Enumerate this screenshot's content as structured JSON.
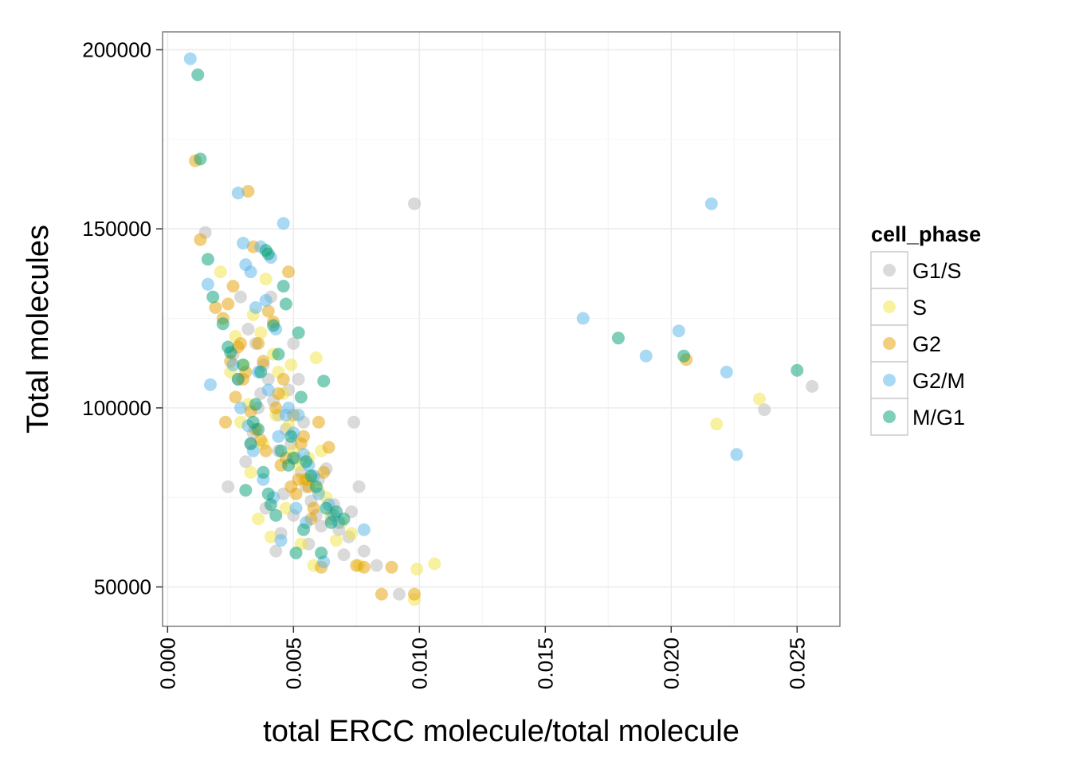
{
  "chart_data": {
    "type": "scatter",
    "xlabel": "total ERCC molecule/total molecule",
    "ylabel": "Total molecules",
    "xlim": [
      -0.0002,
      0.0267
    ],
    "ylim": [
      39000,
      205000
    ],
    "x_ticks": [
      0.0,
      0.005,
      0.01,
      0.015,
      0.02,
      0.025
    ],
    "x_tick_labels": [
      "0.000",
      "0.005",
      "0.010",
      "0.015",
      "0.020",
      "0.025"
    ],
    "y_ticks": [
      50000,
      100000,
      150000,
      200000
    ],
    "y_tick_labels": [
      "50000",
      "100000",
      "150000",
      "200000"
    ],
    "grid": true,
    "legend_position": "right",
    "legend_title": "cell_phase",
    "series": [
      {
        "name": "G1/S",
        "color": "#b5b5b5",
        "points": [
          [
            0.0015,
            149000
          ],
          [
            0.0029,
            131000
          ],
          [
            0.0032,
            122000
          ],
          [
            0.0035,
            118000
          ],
          [
            0.0038,
            112000
          ],
          [
            0.004,
            108000
          ],
          [
            0.0042,
            102000
          ],
          [
            0.0044,
            98000
          ],
          [
            0.0047,
            94000
          ],
          [
            0.0049,
            90000
          ],
          [
            0.0051,
            86000
          ],
          [
            0.0053,
            82000
          ],
          [
            0.0055,
            78000
          ],
          [
            0.0057,
            74000
          ],
          [
            0.0059,
            70000
          ],
          [
            0.0061,
            67000
          ],
          [
            0.0063,
            83000
          ],
          [
            0.0065,
            69000
          ],
          [
            0.0068,
            66000
          ],
          [
            0.007,
            59000
          ],
          [
            0.0073,
            71000
          ],
          [
            0.0076,
            78000
          ],
          [
            0.0078,
            60000
          ],
          [
            0.0083,
            56000
          ],
          [
            0.0092,
            48000
          ],
          [
            0.0098,
            157000
          ],
          [
            0.0074,
            96000
          ],
          [
            0.0024,
            78000
          ],
          [
            0.0033,
            90000
          ],
          [
            0.0036,
            100000
          ],
          [
            0.0041,
            131000
          ],
          [
            0.0045,
            65000
          ],
          [
            0.0048,
            105000
          ],
          [
            0.0052,
            108000
          ],
          [
            0.0026,
            115000
          ],
          [
            0.0031,
            85000
          ],
          [
            0.0039,
            72000
          ],
          [
            0.0043,
            60000
          ],
          [
            0.005,
            118000
          ],
          [
            0.0056,
            62000
          ],
          [
            0.0028,
            108000
          ],
          [
            0.0034,
            93000
          ],
          [
            0.0046,
            76000
          ],
          [
            0.0054,
            96000
          ],
          [
            0.006,
            80000
          ],
          [
            0.0066,
            73000
          ],
          [
            0.0072,
            64000
          ],
          [
            0.0044,
            88000
          ],
          [
            0.0037,
            104000
          ],
          [
            0.005,
            70000
          ],
          [
            0.0237,
            99500
          ],
          [
            0.0256,
            106000
          ]
        ]
      },
      {
        "name": "S",
        "color": "#f0e442",
        "points": [
          [
            0.0021,
            138000
          ],
          [
            0.0027,
            120000
          ],
          [
            0.003,
            112000
          ],
          [
            0.0034,
            126000
          ],
          [
            0.0037,
            121000
          ],
          [
            0.0039,
            136000
          ],
          [
            0.0042,
            115000
          ],
          [
            0.0044,
            110000
          ],
          [
            0.0046,
            104000
          ],
          [
            0.0048,
            95000
          ],
          [
            0.005,
            88000
          ],
          [
            0.0052,
            84000
          ],
          [
            0.0054,
            80000
          ],
          [
            0.0056,
            86000
          ],
          [
            0.0058,
            56000
          ],
          [
            0.0059,
            114000
          ],
          [
            0.0061,
            88000
          ],
          [
            0.0063,
            75000
          ],
          [
            0.0065,
            70000
          ],
          [
            0.0067,
            63000
          ],
          [
            0.0069,
            68000
          ],
          [
            0.0073,
            65000
          ],
          [
            0.0076,
            56000
          ],
          [
            0.0098,
            46500
          ],
          [
            0.0099,
            55000
          ],
          [
            0.0106,
            56500
          ],
          [
            0.0036,
            69000
          ],
          [
            0.0041,
            64000
          ],
          [
            0.0047,
            72000
          ],
          [
            0.0032,
            101000
          ],
          [
            0.0029,
            96000
          ],
          [
            0.0038,
            90000
          ],
          [
            0.0043,
            98000
          ],
          [
            0.0053,
            62000
          ],
          [
            0.0057,
            80000
          ],
          [
            0.0025,
            110000
          ],
          [
            0.0033,
            82000
          ],
          [
            0.0049,
            112000
          ],
          [
            0.006,
            77000
          ],
          [
            0.0218,
            95500
          ],
          [
            0.0235,
            102500
          ]
        ]
      },
      {
        "name": "G2",
        "color": "#e69f00",
        "points": [
          [
            0.0011,
            169000
          ],
          [
            0.0013,
            147000
          ],
          [
            0.0019,
            128000
          ],
          [
            0.0022,
            125000
          ],
          [
            0.0024,
            129000
          ],
          [
            0.0026,
            134000
          ],
          [
            0.0028,
            117000
          ],
          [
            0.003,
            108000
          ],
          [
            0.0032,
            160500
          ],
          [
            0.0034,
            145000
          ],
          [
            0.0036,
            118000
          ],
          [
            0.0038,
            113000
          ],
          [
            0.004,
            127000
          ],
          [
            0.0042,
            124000
          ],
          [
            0.0044,
            104000
          ],
          [
            0.0046,
            108000
          ],
          [
            0.0048,
            138000
          ],
          [
            0.005,
            98000
          ],
          [
            0.0052,
            80000
          ],
          [
            0.0054,
            92000
          ],
          [
            0.0056,
            78000
          ],
          [
            0.0058,
            72000
          ],
          [
            0.006,
            96000
          ],
          [
            0.0062,
            82000
          ],
          [
            0.0064,
            89000
          ],
          [
            0.0075,
            56000
          ],
          [
            0.0078,
            55500
          ],
          [
            0.0085,
            48000
          ],
          [
            0.0089,
            55500
          ],
          [
            0.0098,
            48000
          ],
          [
            0.0023,
            96000
          ],
          [
            0.0027,
            103000
          ],
          [
            0.0031,
            110000
          ],
          [
            0.0035,
            94000
          ],
          [
            0.0039,
            88000
          ],
          [
            0.0043,
            100000
          ],
          [
            0.0047,
            86000
          ],
          [
            0.0051,
            76000
          ],
          [
            0.0055,
            80000
          ],
          [
            0.0025,
            113000
          ],
          [
            0.0033,
            99000
          ],
          [
            0.0037,
            91000
          ],
          [
            0.0045,
            84000
          ],
          [
            0.0049,
            78000
          ],
          [
            0.0053,
            90000
          ],
          [
            0.0057,
            69000
          ],
          [
            0.0061,
            55500
          ],
          [
            0.0029,
            118000
          ],
          [
            0.0206,
            113500
          ]
        ]
      },
      {
        "name": "G2/M",
        "color": "#56b4e9",
        "points": [
          [
            0.0009,
            197500
          ],
          [
            0.0016,
            134500
          ],
          [
            0.0017,
            106500
          ],
          [
            0.0028,
            160000
          ],
          [
            0.003,
            146000
          ],
          [
            0.0031,
            140000
          ],
          [
            0.0033,
            138000
          ],
          [
            0.0035,
            128000
          ],
          [
            0.0037,
            145000
          ],
          [
            0.0039,
            130000
          ],
          [
            0.0041,
            142000
          ],
          [
            0.0043,
            122000
          ],
          [
            0.0046,
            151500
          ],
          [
            0.0048,
            100000
          ],
          [
            0.005,
            93000
          ],
          [
            0.0052,
            98000
          ],
          [
            0.0054,
            87000
          ],
          [
            0.0056,
            84000
          ],
          [
            0.0058,
            81000
          ],
          [
            0.006,
            76000
          ],
          [
            0.0062,
            57000
          ],
          [
            0.0064,
            73000
          ],
          [
            0.0066,
            70000
          ],
          [
            0.0068,
            68000
          ],
          [
            0.0078,
            66000
          ],
          [
            0.0026,
            112000
          ],
          [
            0.0029,
            100000
          ],
          [
            0.0032,
            95000
          ],
          [
            0.0036,
            110000
          ],
          [
            0.004,
            105000
          ],
          [
            0.0044,
            92000
          ],
          [
            0.0047,
            98000
          ],
          [
            0.0051,
            72000
          ],
          [
            0.0055,
            68000
          ],
          [
            0.0034,
            88000
          ],
          [
            0.0038,
            80000
          ],
          [
            0.0042,
            75000
          ],
          [
            0.0045,
            63000
          ],
          [
            0.0165,
            125000
          ],
          [
            0.019,
            114500
          ],
          [
            0.0203,
            121500
          ],
          [
            0.0216,
            157000
          ],
          [
            0.0222,
            110000
          ],
          [
            0.0226,
            87000
          ]
        ]
      },
      {
        "name": "M/G1",
        "color": "#009e73",
        "points": [
          [
            0.0012,
            193000
          ],
          [
            0.0013,
            169500
          ],
          [
            0.0016,
            141500
          ],
          [
            0.0018,
            131000
          ],
          [
            0.0022,
            123500
          ],
          [
            0.0025,
            115500
          ],
          [
            0.0028,
            108000
          ],
          [
            0.0031,
            77000
          ],
          [
            0.0033,
            90000
          ],
          [
            0.0035,
            101000
          ],
          [
            0.0037,
            110000
          ],
          [
            0.0039,
            144000
          ],
          [
            0.004,
            143000
          ],
          [
            0.0042,
            123000
          ],
          [
            0.0044,
            115000
          ],
          [
            0.0046,
            134000
          ],
          [
            0.0047,
            129000
          ],
          [
            0.005,
            86000
          ],
          [
            0.0052,
            121000
          ],
          [
            0.0053,
            103000
          ],
          [
            0.0055,
            85000
          ],
          [
            0.0057,
            81000
          ],
          [
            0.0059,
            78000
          ],
          [
            0.0061,
            59500
          ],
          [
            0.0063,
            72000
          ],
          [
            0.0065,
            68000
          ],
          [
            0.0067,
            71000
          ],
          [
            0.007,
            69000
          ],
          [
            0.0062,
            107500
          ],
          [
            0.0036,
            94000
          ],
          [
            0.0038,
            82000
          ],
          [
            0.004,
            76000
          ],
          [
            0.0043,
            70000
          ],
          [
            0.0045,
            88000
          ],
          [
            0.0048,
            84000
          ],
          [
            0.0051,
            59500
          ],
          [
            0.0054,
            66000
          ],
          [
            0.0034,
            96000
          ],
          [
            0.0041,
            73000
          ],
          [
            0.0049,
            92000
          ],
          [
            0.0024,
            117000
          ],
          [
            0.003,
            112000
          ],
          [
            0.0179,
            119500
          ],
          [
            0.0205,
            114500
          ],
          [
            0.025,
            110500
          ]
        ]
      }
    ]
  }
}
